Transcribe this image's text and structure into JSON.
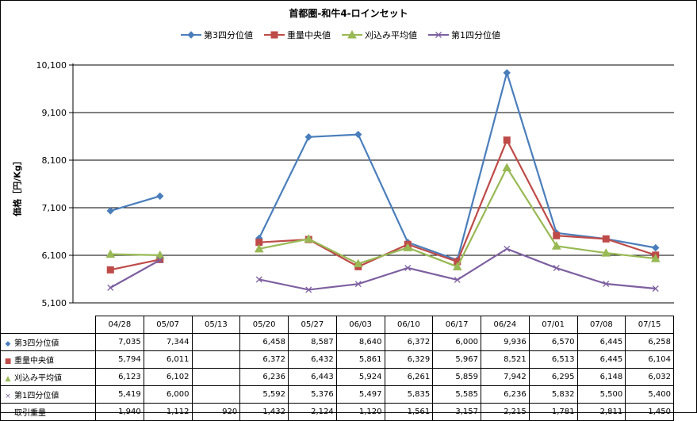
{
  "chart_data": {
    "type": "line",
    "title": "首都圏-和牛4-ロインセット",
    "ylabel": "価格［円/Kg］",
    "xlabel": "",
    "ylim": [
      5100,
      10100
    ],
    "yticks": [
      "5,100",
      "6,100",
      "7,100",
      "8,100",
      "9,100",
      "10,100"
    ],
    "ytick_values": [
      5100,
      6100,
      7100,
      8100,
      9100,
      10100
    ],
    "grid": true,
    "legend": "top",
    "categories": [
      "04/28",
      "05/07",
      "05/13",
      "05/20",
      "05/27",
      "06/03",
      "06/10",
      "06/17",
      "06/24",
      "07/01",
      "07/08",
      "07/15"
    ],
    "series": [
      {
        "name": "第3四分位値",
        "color": "#4a7ebb",
        "marker": "diamond",
        "values": [
          7035,
          7344,
          null,
          6458,
          8587,
          8640,
          6372,
          6000,
          9936,
          6570,
          6445,
          6258
        ],
        "labels": [
          "7,035",
          "7,344",
          "",
          "6,458",
          "8,587",
          "8,640",
          "6,372",
          "6,000",
          "9,936",
          "6,570",
          "6,445",
          "6,258"
        ]
      },
      {
        "name": "重量中央値",
        "color": "#be4b48",
        "marker": "square",
        "values": [
          5794,
          6011,
          null,
          6372,
          6432,
          5861,
          6329,
          5967,
          8521,
          6513,
          6445,
          6104
        ],
        "labels": [
          "5,794",
          "6,011",
          "",
          "6,372",
          "6,432",
          "5,861",
          "6,329",
          "5,967",
          "8,521",
          "6,513",
          "6,445",
          "6,104"
        ]
      },
      {
        "name": "刈込み平均値",
        "color": "#98b954",
        "marker": "triangle",
        "values": [
          6123,
          6102,
          null,
          6236,
          6443,
          5924,
          6261,
          5859,
          7942,
          6295,
          6148,
          6032
        ],
        "labels": [
          "6,123",
          "6,102",
          "",
          "6,236",
          "6,443",
          "5,924",
          "6,261",
          "5,859",
          "7,942",
          "6,295",
          "6,148",
          "6,032"
        ]
      },
      {
        "name": "第1四分位値",
        "color": "#7d60a0",
        "marker": "x",
        "values": [
          5419,
          6000,
          null,
          5592,
          5376,
          5497,
          5835,
          5585,
          6236,
          5832,
          5500,
          5400
        ],
        "labels": [
          "5,419",
          "6,000",
          "",
          "5,592",
          "5,376",
          "5,497",
          "5,835",
          "5,585",
          "6,236",
          "5,832",
          "5,500",
          "5,400"
        ]
      }
    ],
    "extra_row": {
      "name": "取引重量",
      "labels": [
        "1,940",
        "1,112",
        "920",
        "1,432",
        "2,124",
        "1,120",
        "1,561",
        "3,157",
        "2,215",
        "1,781",
        "2,811",
        "1,450"
      ]
    }
  }
}
